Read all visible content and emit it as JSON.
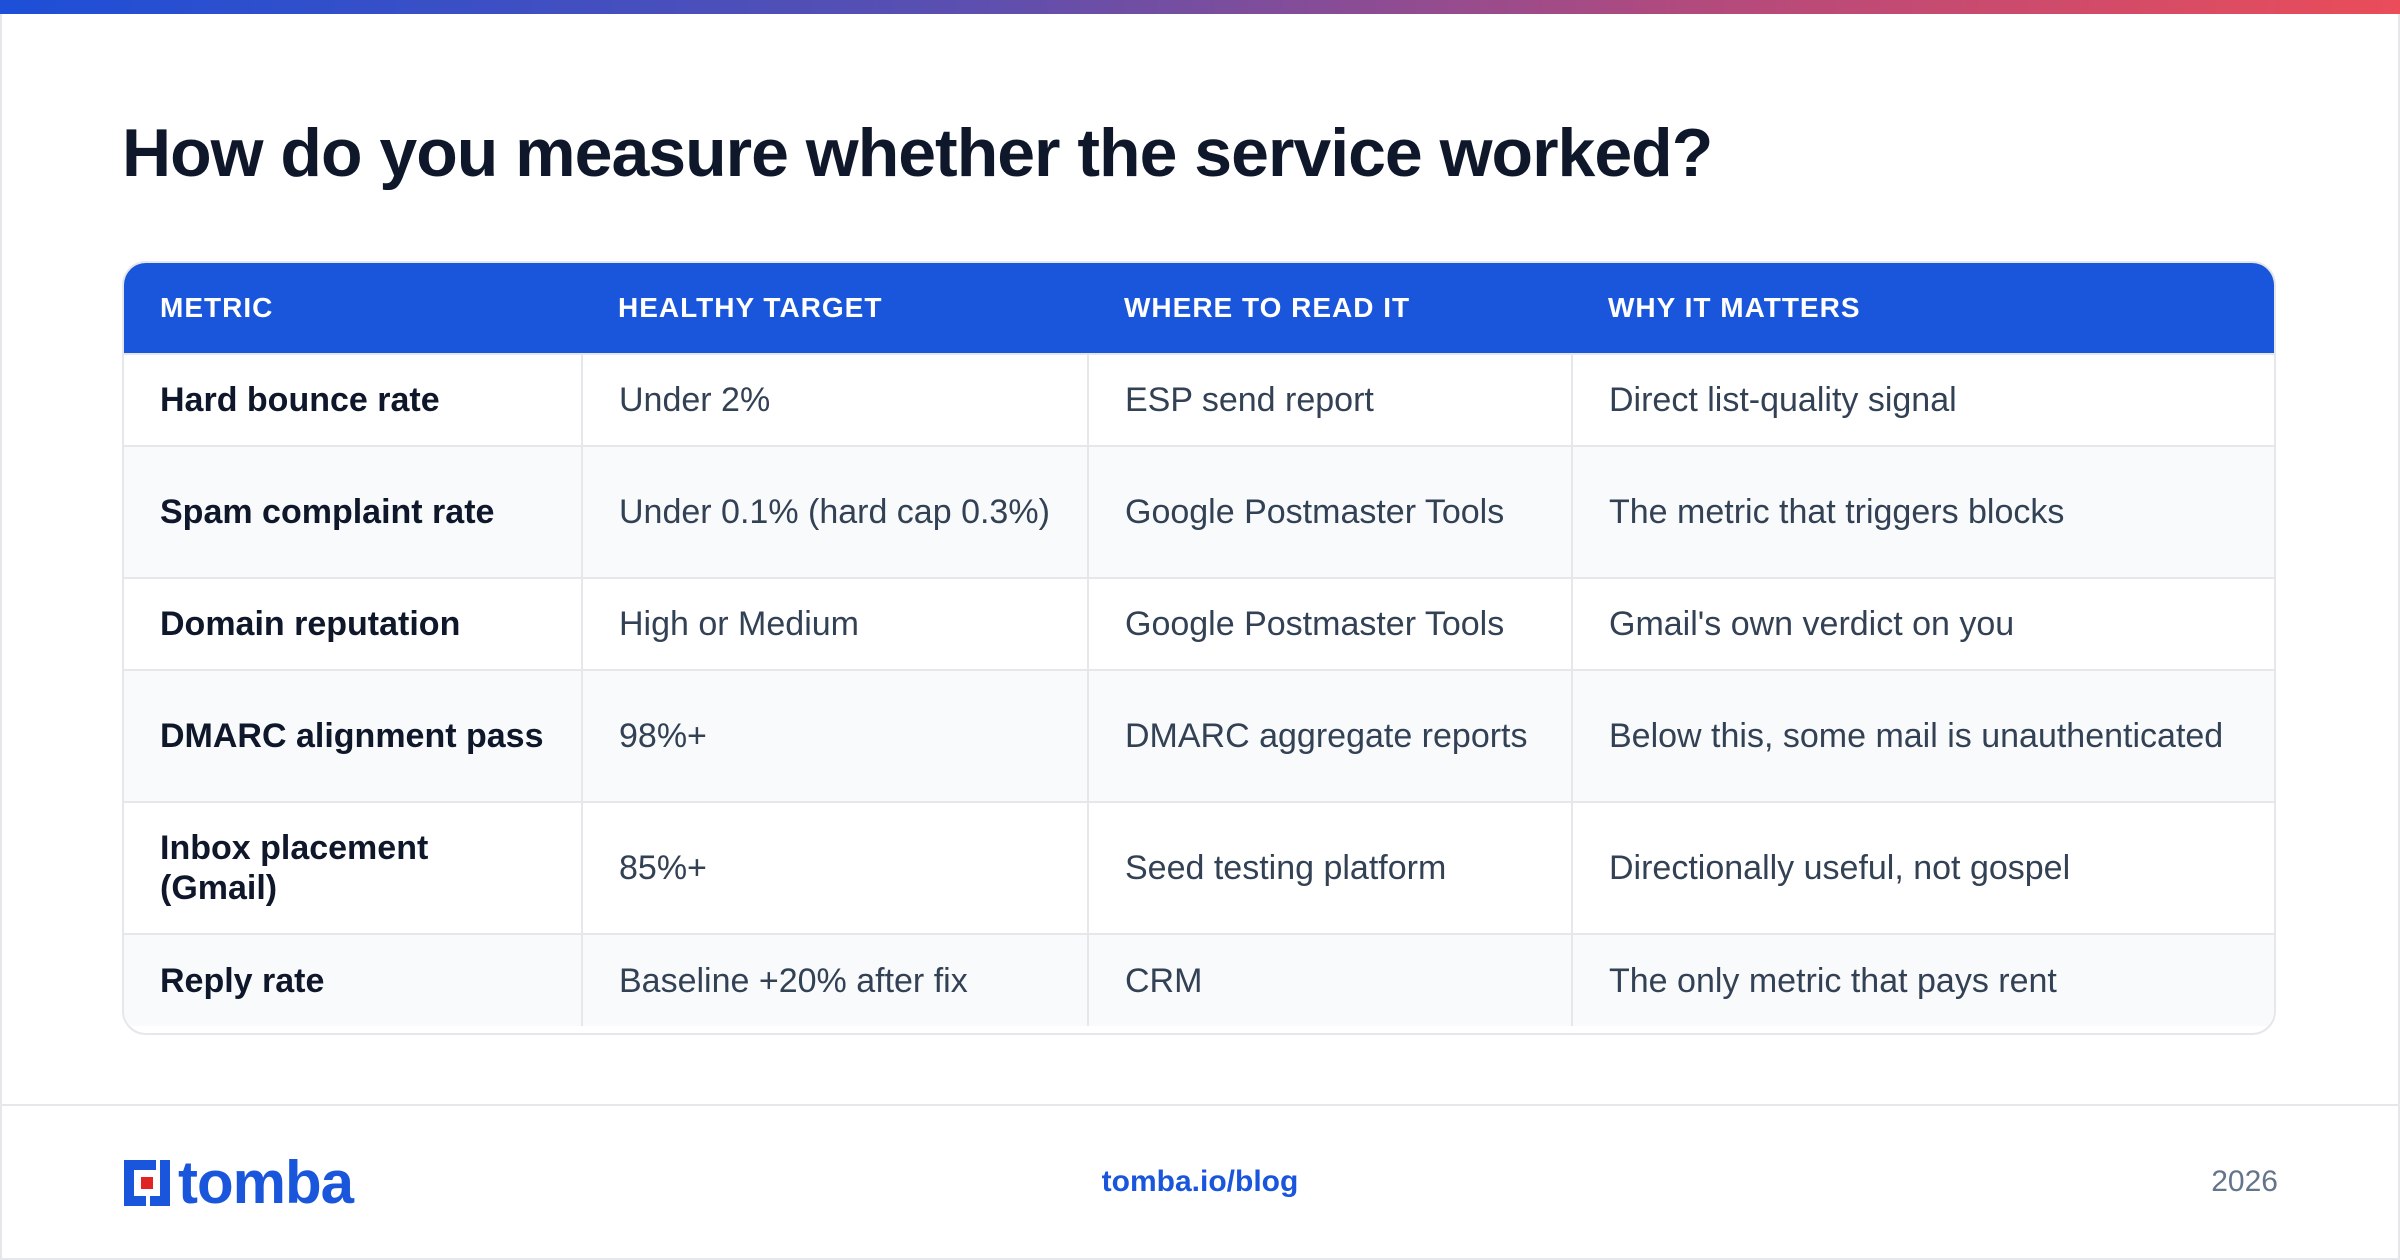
{
  "title": "How do you measure whether the service worked?",
  "table": {
    "headers": [
      "METRIC",
      "HEALTHY TARGET",
      "WHERE TO READ IT",
      "WHY IT MATTERS"
    ],
    "rows": [
      [
        "Hard bounce rate",
        "Under 2%",
        "ESP send report",
        "Direct list-quality signal"
      ],
      [
        "Spam complaint rate",
        "Under 0.1% (hard cap 0.3%)",
        "Google Postmaster Tools",
        "The metric that triggers blocks"
      ],
      [
        "Domain reputation",
        "High or Medium",
        "Google Postmaster Tools",
        "Gmail's own verdict on you"
      ],
      [
        "DMARC alignment pass",
        "98%+",
        "DMARC aggregate reports",
        "Below this, some mail is unauthenticated"
      ],
      [
        "Inbox placement (Gmail)",
        "85%+",
        "Seed testing platform",
        "Directionally useful, not gospel"
      ],
      [
        "Reply rate",
        "Baseline +20% after fix",
        "CRM",
        "The only metric that pays rent"
      ]
    ]
  },
  "footer": {
    "logo_text": "tomba",
    "url": "tomba.io/blog",
    "year": "2026"
  },
  "colors": {
    "accent": "#1a56db",
    "logo_red": "#e02424",
    "gradient_start": "#1d4fd8",
    "gradient_end": "#ea4c59"
  },
  "icons": {
    "logo": "tomba-logo-icon"
  }
}
